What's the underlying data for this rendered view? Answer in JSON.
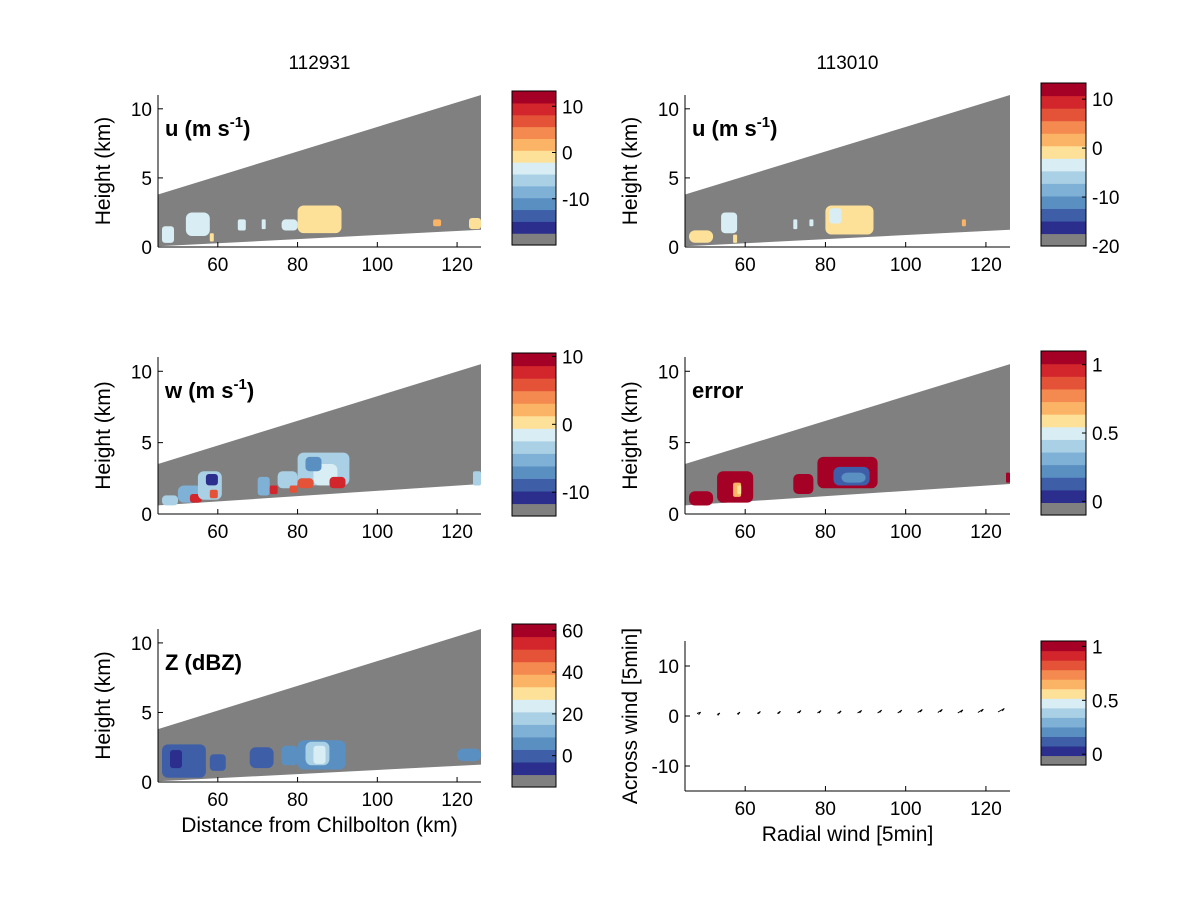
{
  "colors": {
    "mask": "#808080",
    "palette": [
      "#808080",
      "#2b2e8c",
      "#3e5fa8",
      "#5a8fc2",
      "#7fb1d6",
      "#a9d0e4",
      "#d9eef4",
      "#fde199",
      "#fbb466",
      "#f48a4f",
      "#e45237",
      "#d2262c",
      "#a50026"
    ],
    "arrow": "#000000"
  },
  "chart_data": [
    {
      "id": "u_112931",
      "type": "heatmap",
      "title": "112931",
      "panel_label": "u (m s",
      "panel_label_sup": "-1",
      "panel_label_end": ")",
      "xlabel": "",
      "ylabel": "Height (km)",
      "xlim": [
        45,
        126
      ],
      "ylim": [
        0,
        11
      ],
      "xticks": [
        60,
        80,
        100,
        120
      ],
      "yticks": [
        0,
        5,
        10
      ],
      "beam_top": [
        [
          45,
          3.8
        ],
        [
          126,
          11.0
        ]
      ],
      "beam_bottom": [
        [
          45,
          0.05
        ],
        [
          126,
          1.25
        ]
      ],
      "colorbar": {
        "range": [
          -20,
          13.3
        ],
        "ticks": [
          10,
          0,
          -10
        ]
      },
      "echoes": [
        {
          "x": [
            46,
            49
          ],
          "y": [
            0.3,
            1.5
          ],
          "level": 6
        },
        {
          "x": [
            52,
            58
          ],
          "y": [
            0.8,
            2.5
          ],
          "level": 6
        },
        {
          "x": [
            58,
            59
          ],
          "y": [
            0.4,
            1.0
          ],
          "level": 7
        },
        {
          "x": [
            65,
            67
          ],
          "y": [
            1.2,
            2.0
          ],
          "level": 6
        },
        {
          "x": [
            71,
            72
          ],
          "y": [
            1.3,
            2.0
          ],
          "level": 6
        },
        {
          "x": [
            76,
            80
          ],
          "y": [
            1.2,
            2.0
          ],
          "level": 6
        },
        {
          "x": [
            80,
            91
          ],
          "y": [
            1.0,
            3.0
          ],
          "level": 7
        },
        {
          "x": [
            114,
            116
          ],
          "y": [
            1.5,
            2.0
          ],
          "level": 8
        },
        {
          "x": [
            123,
            126
          ],
          "y": [
            1.3,
            2.1
          ],
          "level": 7
        }
      ]
    },
    {
      "id": "u_113010",
      "type": "heatmap",
      "title": "113010",
      "panel_label": "u (m s",
      "panel_label_sup": "-1",
      "panel_label_end": ")",
      "xlabel": "",
      "ylabel": "Height (km)",
      "xlim": [
        45,
        126
      ],
      "ylim": [
        0,
        11
      ],
      "xticks": [
        60,
        80,
        100,
        120
      ],
      "yticks": [
        0,
        5,
        10
      ],
      "beam_top": [
        [
          45,
          3.8
        ],
        [
          126,
          11.0
        ]
      ],
      "beam_bottom": [
        [
          45,
          0.05
        ],
        [
          126,
          1.25
        ]
      ],
      "colorbar": {
        "range": [
          -20,
          13.3
        ],
        "ticks": [
          10,
          0,
          -10,
          -20
        ]
      },
      "echoes": [
        {
          "x": [
            46,
            52
          ],
          "y": [
            0.3,
            1.2
          ],
          "level": 7
        },
        {
          "x": [
            54,
            58
          ],
          "y": [
            1.0,
            2.5
          ],
          "level": 6
        },
        {
          "x": [
            57,
            58
          ],
          "y": [
            0.3,
            0.9
          ],
          "level": 7
        },
        {
          "x": [
            72,
            73
          ],
          "y": [
            1.3,
            2.0
          ],
          "level": 6
        },
        {
          "x": [
            76,
            77
          ],
          "y": [
            1.5,
            2.0
          ],
          "level": 6
        },
        {
          "x": [
            80,
            92
          ],
          "y": [
            0.9,
            3.0
          ],
          "level": 7
        },
        {
          "x": [
            81,
            84
          ],
          "y": [
            1.7,
            2.8
          ],
          "level": 6
        },
        {
          "x": [
            114,
            115
          ],
          "y": [
            1.5,
            2.0
          ],
          "level": 8
        }
      ]
    },
    {
      "id": "w_112931",
      "type": "heatmap",
      "title": "",
      "panel_label": "w (m s",
      "panel_label_sup": "-1",
      "panel_label_end": ")",
      "xlabel": "",
      "ylabel": "Height (km)",
      "xlim": [
        45,
        126
      ],
      "ylim": [
        0,
        11
      ],
      "xticks": [
        60,
        80,
        100,
        120
      ],
      "yticks": [
        0,
        5,
        10
      ],
      "beam_top": [
        [
          45,
          3.5
        ],
        [
          126,
          10.5
        ]
      ],
      "beam_bottom": [
        [
          45,
          0.6
        ],
        [
          126,
          2.1
        ]
      ],
      "colorbar": {
        "range": [
          -13.5,
          10.5
        ],
        "ticks": [
          10,
          0,
          -10
        ]
      },
      "echoes": [
        {
          "x": [
            46,
            50
          ],
          "y": [
            0.6,
            1.3
          ],
          "level": 5
        },
        {
          "x": [
            50,
            56
          ],
          "y": [
            0.8,
            2.0
          ],
          "level": 4
        },
        {
          "x": [
            53,
            56
          ],
          "y": [
            0.8,
            1.4
          ],
          "level": 11
        },
        {
          "x": [
            55,
            61
          ],
          "y": [
            1.0,
            3.0
          ],
          "level": 5
        },
        {
          "x": [
            57,
            60
          ],
          "y": [
            2.0,
            2.8
          ],
          "level": 1
        },
        {
          "x": [
            58,
            60
          ],
          "y": [
            1.1,
            1.7
          ],
          "level": 10
        },
        {
          "x": [
            70,
            73
          ],
          "y": [
            1.3,
            2.6
          ],
          "level": 4
        },
        {
          "x": [
            73,
            75
          ],
          "y": [
            1.4,
            2.0
          ],
          "level": 11
        },
        {
          "x": [
            75,
            80
          ],
          "y": [
            1.8,
            3.0
          ],
          "level": 5
        },
        {
          "x": [
            78,
            80
          ],
          "y": [
            1.5,
            2.0
          ],
          "level": 10
        },
        {
          "x": [
            80,
            93
          ],
          "y": [
            2.0,
            4.3
          ],
          "level": 5
        },
        {
          "x": [
            80,
            84
          ],
          "y": [
            1.8,
            2.5
          ],
          "level": 10
        },
        {
          "x": [
            84,
            90
          ],
          "y": [
            2.0,
            3.5
          ],
          "level": 6
        },
        {
          "x": [
            88,
            92
          ],
          "y": [
            1.8,
            2.6
          ],
          "level": 11
        },
        {
          "x": [
            82,
            86
          ],
          "y": [
            3.0,
            4.0
          ],
          "level": 3
        },
        {
          "x": [
            124,
            126
          ],
          "y": [
            2.0,
            3.0
          ],
          "level": 5
        }
      ]
    },
    {
      "id": "error_113010",
      "type": "heatmap",
      "title": "",
      "panel_label": "error",
      "panel_label_sup": "",
      "panel_label_end": "",
      "xlabel": "",
      "ylabel": "Height (km)",
      "xlim": [
        45,
        126
      ],
      "ylim": [
        0,
        11
      ],
      "xticks": [
        60,
        80,
        100,
        120
      ],
      "yticks": [
        0,
        5,
        10
      ],
      "beam_top": [
        [
          45,
          3.5
        ],
        [
          126,
          10.5
        ]
      ],
      "beam_bottom": [
        [
          45,
          0.6
        ],
        [
          126,
          2.1
        ]
      ],
      "colorbar": {
        "range": [
          -0.1,
          1.1
        ],
        "ticks": [
          1,
          0.5,
          0
        ]
      },
      "echoes": [
        {
          "x": [
            46,
            52
          ],
          "y": [
            0.6,
            1.6
          ],
          "level": 12
        },
        {
          "x": [
            53,
            62
          ],
          "y": [
            0.8,
            3.0
          ],
          "level": 12
        },
        {
          "x": [
            57,
            59
          ],
          "y": [
            1.2,
            2.2
          ],
          "level": 8
        },
        {
          "x": [
            58,
            59
          ],
          "y": [
            1.4,
            2.0
          ],
          "level": 7
        },
        {
          "x": [
            72,
            77
          ],
          "y": [
            1.4,
            2.8
          ],
          "level": 12
        },
        {
          "x": [
            78,
            93
          ],
          "y": [
            1.8,
            4.0
          ],
          "level": 12
        },
        {
          "x": [
            82,
            91
          ],
          "y": [
            2.0,
            3.3
          ],
          "level": 2
        },
        {
          "x": [
            84,
            90
          ],
          "y": [
            2.2,
            2.9
          ],
          "level": 3
        },
        {
          "x": [
            125,
            126
          ],
          "y": [
            2.2,
            2.9
          ],
          "level": 12
        }
      ]
    },
    {
      "id": "Z_112931",
      "type": "heatmap",
      "title": "",
      "panel_label": "Z (dBZ)",
      "panel_label_sup": "",
      "panel_label_end": "",
      "xlabel": "Distance from Chilbolton (km)",
      "ylabel": "Height (km)",
      "xlim": [
        45,
        126
      ],
      "ylim": [
        0,
        11
      ],
      "xticks": [
        60,
        80,
        100,
        120
      ],
      "yticks": [
        0,
        5,
        10
      ],
      "beam_top": [
        [
          45,
          3.8
        ],
        [
          126,
          11.0
        ]
      ],
      "beam_bottom": [
        [
          45,
          0.05
        ],
        [
          126,
          1.25
        ]
      ],
      "colorbar": {
        "range": [
          -15,
          63
        ],
        "ticks": [
          60,
          40,
          20,
          0
        ]
      },
      "echoes": [
        {
          "x": [
            46,
            57
          ],
          "y": [
            0.3,
            2.7
          ],
          "level": 2
        },
        {
          "x": [
            48,
            51
          ],
          "y": [
            1.0,
            2.3
          ],
          "level": 1
        },
        {
          "x": [
            58,
            62
          ],
          "y": [
            0.8,
            2.0
          ],
          "level": 2
        },
        {
          "x": [
            68,
            74
          ],
          "y": [
            1.0,
            2.5
          ],
          "level": 2
        },
        {
          "x": [
            76,
            80
          ],
          "y": [
            1.2,
            2.6
          ],
          "level": 3
        },
        {
          "x": [
            80,
            92
          ],
          "y": [
            0.9,
            3.0
          ],
          "level": 3
        },
        {
          "x": [
            82,
            88
          ],
          "y": [
            1.2,
            2.9
          ],
          "level": 5
        },
        {
          "x": [
            84,
            87
          ],
          "y": [
            1.3,
            2.6
          ],
          "level": 6
        },
        {
          "x": [
            120,
            126
          ],
          "y": [
            1.5,
            2.4
          ],
          "level": 3
        }
      ]
    },
    {
      "id": "arrows",
      "type": "scatter",
      "title": "",
      "panel_label": "",
      "panel_label_sup": "",
      "panel_label_end": "",
      "xlabel": "Radial wind [5min]",
      "ylabel": "Across wind [5min]",
      "xlim": [
        45,
        126
      ],
      "ylim": [
        -15,
        15
      ],
      "xticks": [
        60,
        80,
        100,
        120
      ],
      "yticks": [
        10,
        0,
        -10
      ],
      "colorbar": {
        "range": [
          -0.1,
          1.05
        ],
        "ticks": [
          1,
          0.5,
          0
        ]
      },
      "x": [
        48,
        53,
        58,
        63,
        68,
        73,
        78,
        83,
        88,
        93,
        98,
        103,
        108,
        113,
        118,
        123
      ],
      "y": [
        0.5,
        0.3,
        0.4,
        0.5,
        0.5,
        0.6,
        0.6,
        0.5,
        0.6,
        0.6,
        0.6,
        0.7,
        0.7,
        0.6,
        0.7,
        0.8
      ],
      "u": [
        0.8,
        0.6,
        0.6,
        0.7,
        0.7,
        0.8,
        0.8,
        0.8,
        0.9,
        0.9,
        0.9,
        1.0,
        1.0,
        1.1,
        1.2,
        1.4
      ],
      "v": [
        0.6,
        0.7,
        0.8,
        0.9,
        1.0,
        1.1,
        1.1,
        1.2,
        1.2,
        1.3,
        1.3,
        1.3,
        1.4,
        1.4,
        1.5,
        1.6
      ]
    }
  ]
}
